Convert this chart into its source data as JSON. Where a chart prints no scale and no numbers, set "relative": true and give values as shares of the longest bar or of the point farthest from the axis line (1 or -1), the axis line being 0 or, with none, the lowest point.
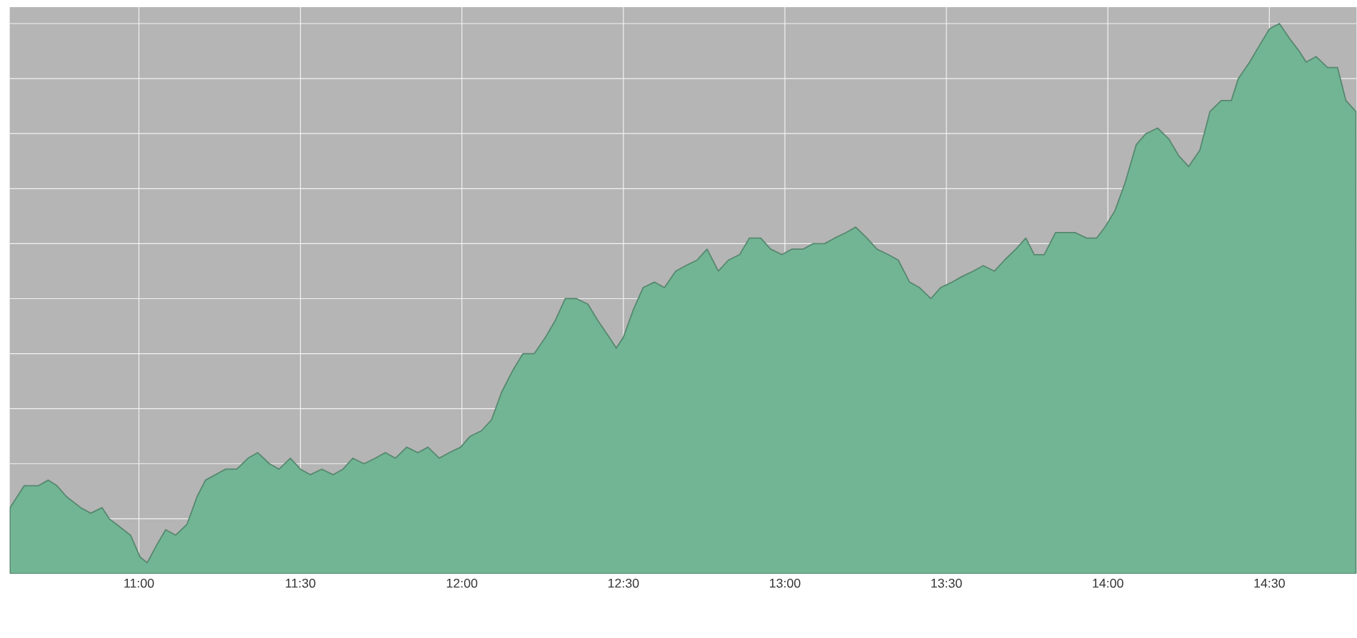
{
  "chart_data": {
    "type": "area",
    "relative": true,
    "color": "#72b594",
    "grid": true,
    "xlim": [
      10.6,
      14.77
    ],
    "xticks": [
      {
        "value": 11,
        "label": "11:00"
      },
      {
        "value": 11.5,
        "label": "11:30"
      },
      {
        "value": 12,
        "label": "12:00"
      },
      {
        "value": 12.5,
        "label": "12:30"
      },
      {
        "value": 13,
        "label": "13:00"
      },
      {
        "value": 13.5,
        "label": "13:30"
      },
      {
        "value": 14,
        "label": "14:00"
      },
      {
        "value": 14.5,
        "label": "14:30"
      }
    ],
    "x": [
      10.601,
      10.645,
      10.689,
      10.719,
      10.746,
      10.776,
      10.82,
      10.851,
      10.886,
      10.908,
      10.93,
      10.974,
      11.004,
      11.026,
      11.053,
      11.083,
      11.114,
      11.149,
      11.18,
      11.206,
      11.237,
      11.268,
      11.303,
      11.338,
      11.368,
      11.404,
      11.434,
      11.469,
      11.5,
      11.531,
      11.566,
      11.601,
      11.632,
      11.662,
      11.697,
      11.732,
      11.763,
      11.794,
      11.829,
      11.864,
      11.895,
      11.93,
      11.961,
      11.996,
      12.026,
      12.061,
      12.092,
      12.123,
      12.158,
      12.189,
      12.224,
      12.259,
      12.289,
      12.32,
      12.355,
      12.39,
      12.421,
      12.456,
      12.478,
      12.5,
      12.531,
      12.561,
      12.596,
      12.627,
      12.662,
      12.693,
      12.728,
      12.759,
      12.794,
      12.825,
      12.86,
      12.89,
      12.925,
      12.956,
      12.991,
      13.022,
      13.057,
      13.088,
      13.123,
      13.154,
      13.189,
      13.219,
      13.254,
      13.285,
      13.32,
      13.351,
      13.386,
      13.417,
      13.452,
      13.482,
      13.518,
      13.548,
      13.583,
      13.614,
      13.649,
      13.68,
      13.715,
      13.746,
      13.772,
      13.803,
      13.838,
      13.868,
      13.899,
      13.934,
      13.965,
      13.991,
      14.022,
      14.053,
      14.088,
      14.118,
      14.154,
      14.189,
      14.219,
      14.25,
      14.285,
      14.316,
      14.351,
      14.382,
      14.404,
      14.439,
      14.469,
      14.5,
      14.531,
      14.566,
      14.592,
      14.614,
      14.645,
      14.68,
      14.711,
      14.737,
      14.768
    ],
    "values": [
      0.12,
      0.16,
      0.16,
      0.17,
      0.16,
      0.14,
      0.12,
      0.11,
      0.12,
      0.1,
      0.09,
      0.07,
      0.03,
      0.02,
      0.05,
      0.08,
      0.07,
      0.09,
      0.14,
      0.17,
      0.18,
      0.19,
      0.19,
      0.21,
      0.22,
      0.2,
      0.19,
      0.21,
      0.19,
      0.18,
      0.19,
      0.18,
      0.19,
      0.21,
      0.2,
      0.21,
      0.22,
      0.21,
      0.23,
      0.22,
      0.23,
      0.21,
      0.22,
      0.23,
      0.25,
      0.26,
      0.28,
      0.33,
      0.37,
      0.4,
      0.4,
      0.43,
      0.46,
      0.5,
      0.5,
      0.49,
      0.46,
      0.43,
      0.41,
      0.43,
      0.48,
      0.52,
      0.53,
      0.52,
      0.55,
      0.56,
      0.57,
      0.59,
      0.55,
      0.57,
      0.58,
      0.61,
      0.61,
      0.59,
      0.58,
      0.59,
      0.59,
      0.6,
      0.6,
      0.61,
      0.62,
      0.63,
      0.61,
      0.59,
      0.58,
      0.57,
      0.53,
      0.52,
      0.5,
      0.52,
      0.53,
      0.54,
      0.55,
      0.56,
      0.55,
      0.57,
      0.59,
      0.61,
      0.58,
      0.58,
      0.62,
      0.62,
      0.62,
      0.61,
      0.61,
      0.63,
      0.66,
      0.71,
      0.78,
      0.8,
      0.81,
      0.79,
      0.76,
      0.74,
      0.77,
      0.84,
      0.86,
      0.86,
      0.9,
      0.93,
      0.96,
      0.99,
      1.0,
      0.97,
      0.95,
      0.93,
      0.94,
      0.92,
      0.92,
      0.86,
      0.84
    ]
  }
}
